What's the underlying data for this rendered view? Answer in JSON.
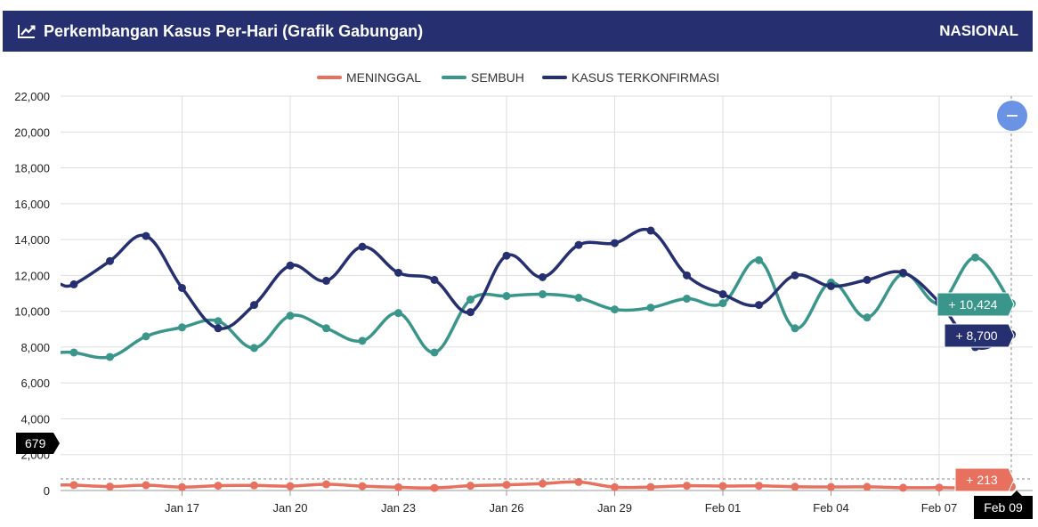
{
  "header": {
    "title": "Perkembangan Kasus Per-Hari (Grafik Gabungan)",
    "region": "NASIONAL",
    "icon": "line-chart-icon",
    "background": "#262f70"
  },
  "zoom_button": {
    "icon": "minus-icon",
    "color": "#6a93e6"
  },
  "chart_data": {
    "type": "line",
    "ylim": [
      0,
      22000
    ],
    "yticks": [
      0,
      2000,
      4000,
      6000,
      8000,
      10000,
      12000,
      14000,
      16000,
      18000,
      20000,
      22000
    ],
    "ytick_labels": [
      "0",
      "2,000",
      "4,000",
      "6,000",
      "8,000",
      "10,000",
      "12,000",
      "14,000",
      "16,000",
      "18,000",
      "20,000",
      "22,000"
    ],
    "x": [
      "Jan 14",
      "Jan 15",
      "Jan 16",
      "Jan 17",
      "Jan 18",
      "Jan 19",
      "Jan 20",
      "Jan 21",
      "Jan 22",
      "Jan 23",
      "Jan 24",
      "Jan 25",
      "Jan 26",
      "Jan 27",
      "Jan 28",
      "Jan 29",
      "Jan 30",
      "Jan 31",
      "Feb 01",
      "Feb 02",
      "Feb 03",
      "Feb 04",
      "Feb 05",
      "Feb 06",
      "Feb 07",
      "Feb 08",
      "Feb 09"
    ],
    "xtick_labels": [
      "Jan 17",
      "Jan 20",
      "Jan 23",
      "Jan 26",
      "Jan 29",
      "Feb 01",
      "Feb 04",
      "Feb 07",
      "Feb 09"
    ],
    "grid": true,
    "legend_position": "top-center",
    "series": [
      {
        "name": "MENINGGAL",
        "color": "#e8705f",
        "values": [
          306,
          220,
          295,
          187,
          270,
          283,
          245,
          346,
          242,
          182,
          144,
          266,
          317,
          387,
          476,
          186,
          194,
          264,
          249,
          262,
          211,
          198,
          202,
          154,
          164,
          141,
          213
        ]
      },
      {
        "name": "SEMBUH",
        "color": "#3a968a",
        "values": [
          7700,
          7450,
          8600,
          9100,
          9450,
          7950,
          9750,
          9050,
          8350,
          9900,
          7700,
          10650,
          10850,
          10950,
          10750,
          10100,
          10200,
          10700,
          10450,
          12850,
          9050,
          11600,
          9650,
          12100,
          10450,
          13000,
          10424
        ]
      },
      {
        "name": "KASUS TERKONFIRMASI",
        "color": "#262f70",
        "values": [
          11500,
          12800,
          14200,
          11300,
          9050,
          10350,
          12550,
          11700,
          13600,
          12150,
          11750,
          9950,
          13100,
          11900,
          13700,
          13800,
          14500,
          12000,
          10950,
          10350,
          12000,
          11400,
          11750,
          12150,
          10500,
          8000,
          8700
        ]
      }
    ],
    "tooltip": {
      "date": "Feb 09",
      "y_readout": "679",
      "values": [
        "+ 10,424",
        "+ 8,700",
        "+ 213"
      ]
    }
  }
}
